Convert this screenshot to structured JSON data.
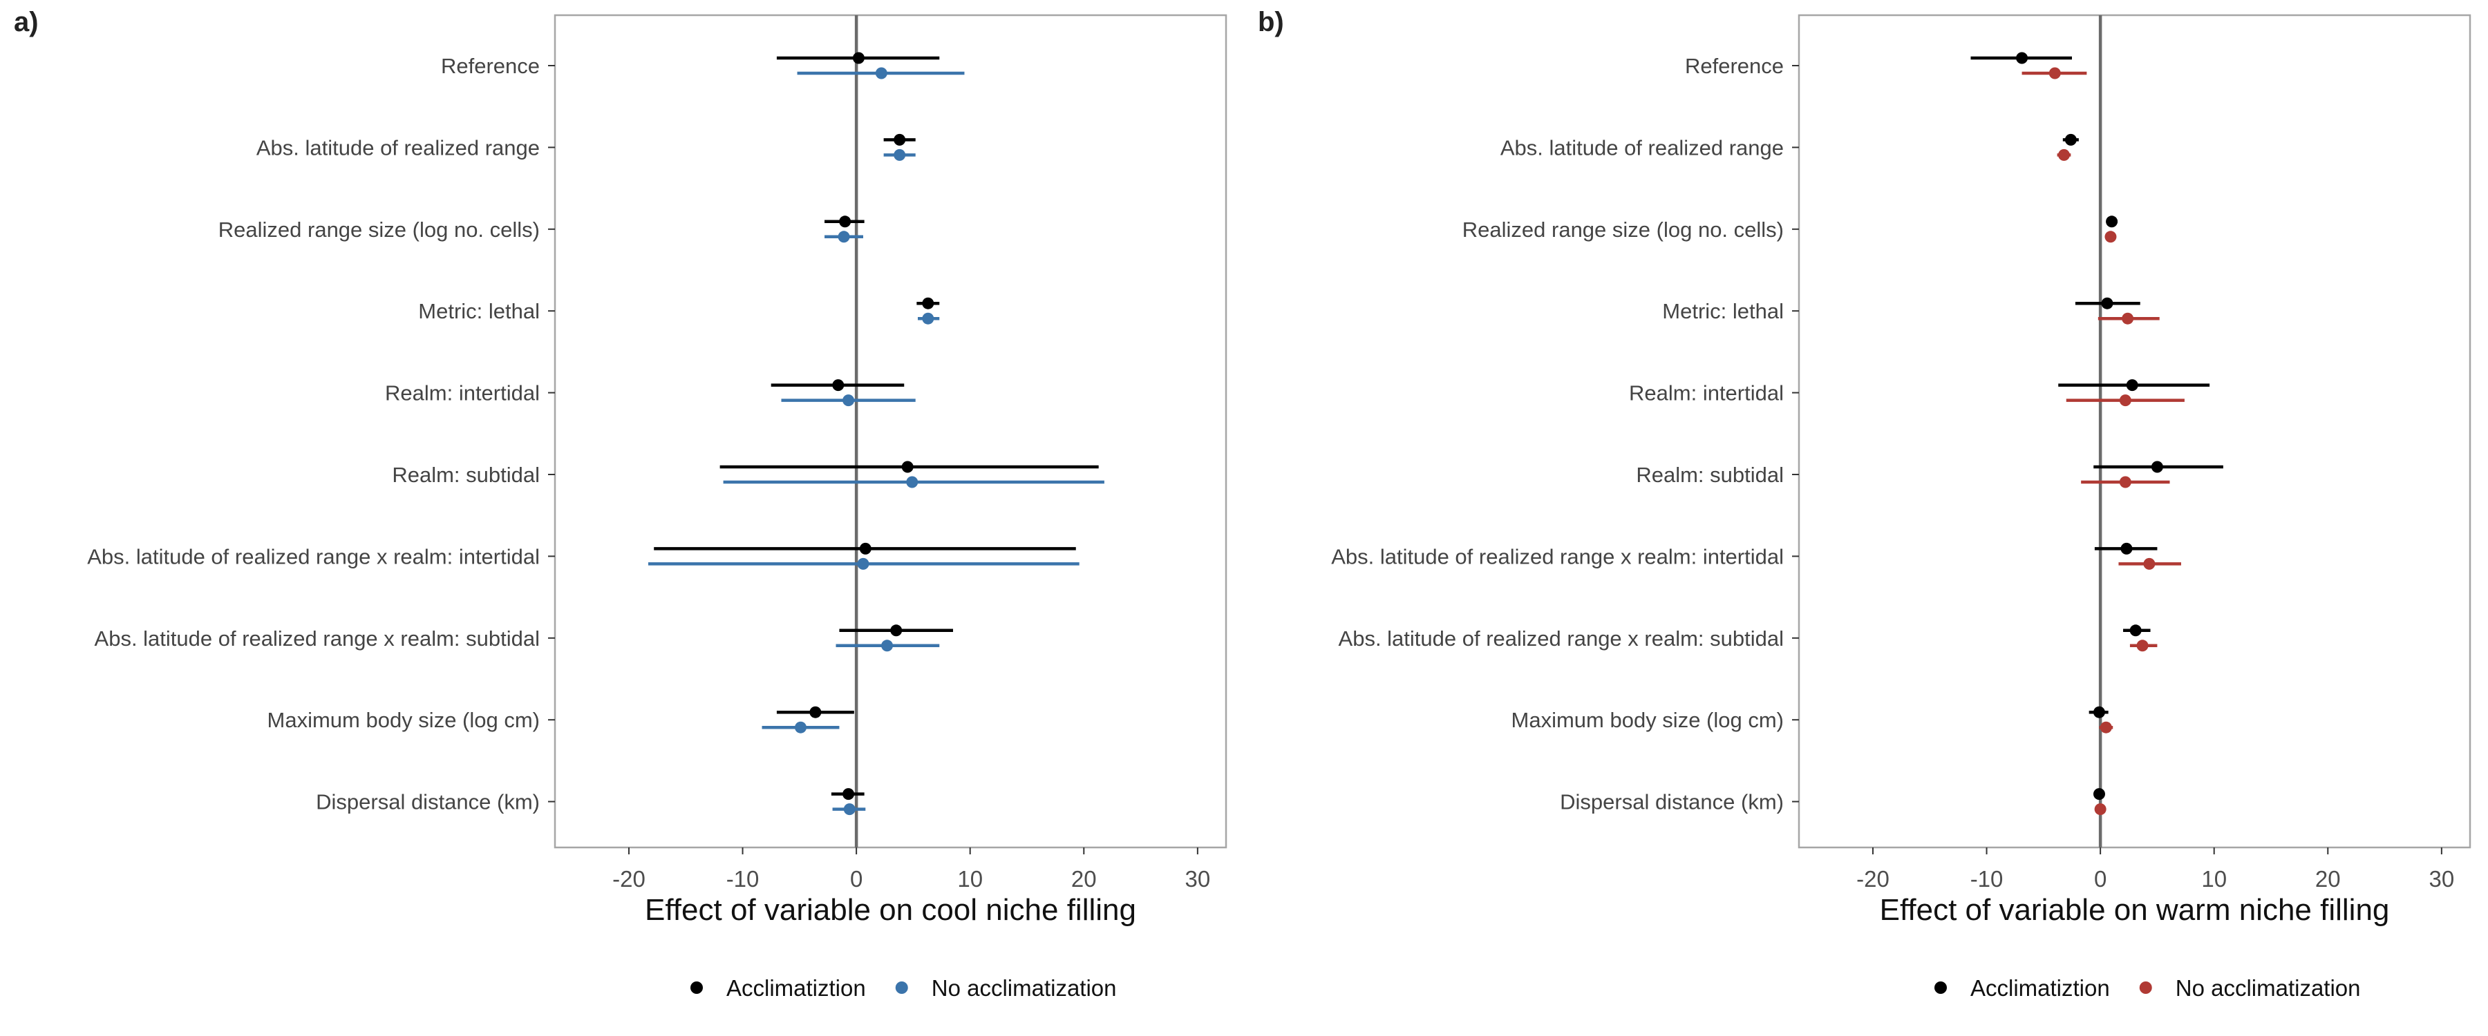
{
  "chart_data": [
    {
      "type": "forest",
      "panel_label": "a)",
      "xlabel": "Effect of variable on cool niche filling",
      "xlim": [
        -26.5,
        32.5
      ],
      "xticks": [
        -20,
        -10,
        0,
        10,
        20,
        30
      ],
      "grid": false,
      "reference_line": 0,
      "legend_position": "bottom",
      "categories": [
        "Reference",
        "Abs. latitude of realized range",
        "Realized range size (log no. cells)",
        "Metric: lethal",
        "Realm: intertidal",
        "Realm: subtidal",
        "Abs. latitude of realized range x realm: intertidal",
        "Abs. latitude of realized range x realm: subtidal",
        "Maximum body size (log cm)",
        "Dispersal distance (km)"
      ],
      "series": [
        {
          "name": "Acclimatiztion",
          "color": "#000000",
          "estimate": [
            0.2,
            3.8,
            -1.0,
            6.3,
            -1.6,
            4.5,
            0.8,
            3.5,
            -3.6,
            -0.7
          ],
          "lower": [
            -7.0,
            2.4,
            -2.8,
            5.3,
            -7.5,
            -12.0,
            -17.8,
            -1.5,
            -7.0,
            -2.2
          ],
          "upper": [
            7.3,
            5.2,
            0.7,
            7.3,
            4.2,
            21.3,
            19.3,
            8.5,
            -0.2,
            0.7
          ]
        },
        {
          "name": "No acclimatization",
          "color": "#3b74ab",
          "estimate": [
            2.2,
            3.8,
            -1.1,
            6.3,
            -0.7,
            4.9,
            0.6,
            2.7,
            -4.9,
            -0.6
          ],
          "lower": [
            -5.2,
            2.4,
            -2.8,
            5.4,
            -6.6,
            -11.7,
            -18.3,
            -1.8,
            -8.3,
            -2.1
          ],
          "upper": [
            9.5,
            5.2,
            0.6,
            7.3,
            5.2,
            21.8,
            19.6,
            7.3,
            -1.5,
            0.8
          ]
        }
      ]
    },
    {
      "type": "forest",
      "panel_label": "b)",
      "xlabel": "Effect of variable on warm niche filling",
      "xlim": [
        -26.5,
        32.5
      ],
      "xticks": [
        -20,
        -10,
        0,
        10,
        20,
        30
      ],
      "grid": false,
      "reference_line": 0,
      "legend_position": "bottom",
      "categories": [
        "Reference",
        "Abs. latitude of realized range",
        "Realized range size (log no. cells)",
        "Metric: lethal",
        "Realm: intertidal",
        "Realm: subtidal",
        "Abs. latitude of realized range x realm: intertidal",
        "Abs. latitude of realized range x realm: subtidal",
        "Maximum body size (log cm)",
        "Dispersal distance (km)"
      ],
      "series": [
        {
          "name": "Acclimatiztion",
          "color": "#000000",
          "estimate": [
            -6.9,
            -2.6,
            1.0,
            0.6,
            2.8,
            5.0,
            2.3,
            3.1,
            -0.1,
            -0.1
          ],
          "lower": [
            -11.4,
            -3.3,
            0.6,
            -2.2,
            -3.7,
            -0.6,
            -0.5,
            2.0,
            -1.0,
            -0.5
          ],
          "upper": [
            -2.5,
            -1.9,
            1.5,
            3.5,
            9.6,
            10.8,
            5.0,
            4.4,
            0.7,
            0.3
          ]
        },
        {
          "name": "No acclimatization",
          "color": "#b03a34",
          "estimate": [
            -4.0,
            -3.2,
            0.9,
            2.4,
            2.2,
            2.2,
            4.3,
            3.7,
            0.5,
            0.0
          ],
          "lower": [
            -6.9,
            -3.8,
            0.5,
            -0.2,
            -3.0,
            -1.7,
            1.6,
            2.6,
            -0.1,
            -0.4
          ],
          "upper": [
            -1.2,
            -2.6,
            1.3,
            5.2,
            7.4,
            6.1,
            7.1,
            5.0,
            1.1,
            0.4
          ]
        }
      ]
    }
  ]
}
